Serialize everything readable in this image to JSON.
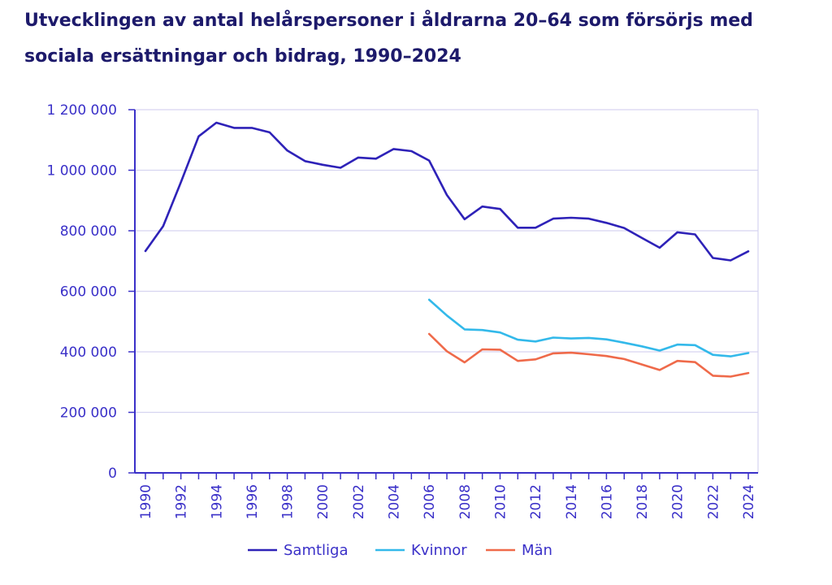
{
  "title": "Utvecklingen av antal helårspersoner i åldrarna 20–64 som försörjs med sociala ersättningar och bidrag, 1990–2024",
  "colors": {
    "axis": "#3a30c8",
    "grid": "#d6d4f0",
    "samtliga": "#2e22b8",
    "kvinnor": "#33b9ea",
    "man": "#ef6a4a"
  },
  "chart_data": {
    "type": "line",
    "title": "Utvecklingen av antal helårspersoner i åldrarna 20–64 som försörjs med sociala ersättningar och bidrag, 1990–2024",
    "xlabel": "",
    "ylabel": "",
    "xlim": [
      1990,
      2024
    ],
    "ylim": [
      0,
      1200000
    ],
    "grid": true,
    "legend_position": "bottom",
    "y_ticks": [
      0,
      200000,
      400000,
      600000,
      800000,
      1000000,
      1200000
    ],
    "y_tick_labels": [
      "0",
      "200 000",
      "400 000",
      "600 000",
      "800 000",
      "1 000 000",
      "1 200 000"
    ],
    "x_tick_labels": [
      "1990",
      "1992",
      "1994",
      "1996",
      "1998",
      "2000",
      "2002",
      "2004",
      "2006",
      "2008",
      "2010",
      "2012",
      "2014",
      "2016",
      "2018",
      "2020",
      "2022",
      "2024"
    ],
    "series": [
      {
        "name": "Samtliga",
        "x": [
          1990,
          1991,
          1992,
          1993,
          1994,
          1995,
          1996,
          1997,
          1998,
          1999,
          2000,
          2001,
          2002,
          2003,
          2004,
          2005,
          2006,
          2007,
          2008,
          2009,
          2010,
          2011,
          2012,
          2013,
          2014,
          2015,
          2016,
          2017,
          2018,
          2019,
          2020,
          2021,
          2022,
          2023,
          2024
        ],
        "values": [
          733000,
          815000,
          960000,
          1112000,
          1157000,
          1140000,
          1140000,
          1125000,
          1065000,
          1030000,
          1018000,
          1008000,
          1042000,
          1038000,
          1070000,
          1063000,
          1032000,
          918000,
          838000,
          880000,
          872000,
          810000,
          810000,
          840000,
          843000,
          840000,
          826000,
          809000,
          776000,
          744000,
          795000,
          788000,
          710000,
          702000,
          732000
        ]
      },
      {
        "name": "Kvinnor",
        "x": [
          2006,
          2007,
          2008,
          2009,
          2010,
          2011,
          2012,
          2013,
          2014,
          2015,
          2016,
          2017,
          2018,
          2019,
          2020,
          2021,
          2022,
          2023,
          2024
        ],
        "values": [
          572000,
          520000,
          474000,
          472000,
          464000,
          440000,
          434000,
          447000,
          444000,
          446000,
          441000,
          430000,
          418000,
          404000,
          424000,
          422000,
          390000,
          385000,
          396000
        ]
      },
      {
        "name": "Män",
        "x": [
          2006,
          2007,
          2008,
          2009,
          2010,
          2011,
          2012,
          2013,
          2014,
          2015,
          2016,
          2017,
          2018,
          2019,
          2020,
          2021,
          2022,
          2023,
          2024
        ],
        "values": [
          459000,
          402000,
          365000,
          408000,
          407000,
          370000,
          375000,
          395000,
          397000,
          392000,
          386000,
          376000,
          358000,
          340000,
          370000,
          366000,
          321000,
          318000,
          330000
        ]
      }
    ]
  }
}
